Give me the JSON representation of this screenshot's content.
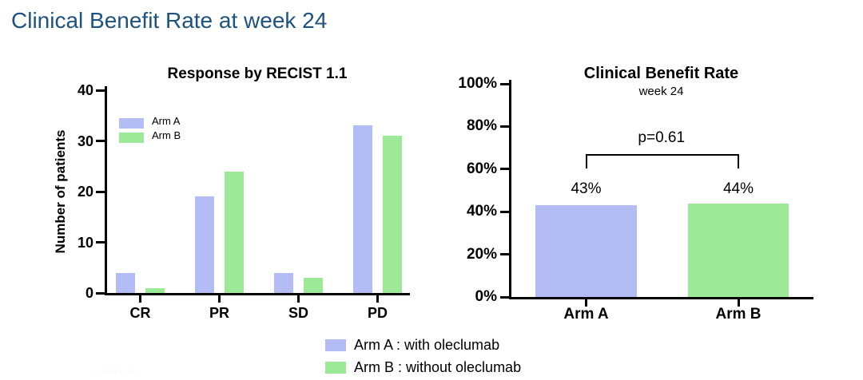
{
  "page": {
    "title": "Clinical Benefit Rate at week 24"
  },
  "colors": {
    "title_navy": "#1E527F",
    "arm_a": "#B4BCF5",
    "arm_b": "#9CE998",
    "axis": "#000000"
  },
  "chart_data": [
    {
      "type": "bar",
      "title": "Response by RECIST 1.1",
      "xlabel": "",
      "ylabel": "Number of patients",
      "categories": [
        "CR",
        "PR",
        "SD",
        "PD"
      ],
      "series": [
        {
          "name": "Arm A",
          "values": [
            4,
            19,
            4,
            33
          ]
        },
        {
          "name": "Arm B",
          "values": [
            1,
            24,
            3,
            31
          ]
        }
      ],
      "ylim": [
        0,
        40
      ],
      "yticks": [
        0,
        10,
        20,
        30,
        40
      ],
      "grid": false,
      "legend_position": "inside-top-left"
    },
    {
      "type": "bar",
      "title": "Clinical Benefit Rate",
      "subtitle": "week 24",
      "categories": [
        "Arm A",
        "Arm B"
      ],
      "values": [
        43,
        44
      ],
      "value_labels": [
        "43%",
        "44%"
      ],
      "ylim": [
        0,
        100
      ],
      "ytick_values": [
        0,
        20,
        40,
        60,
        80,
        100
      ],
      "ytick_labels": [
        "0%",
        "20%",
        "40%",
        "60%",
        "80%",
        "100%"
      ],
      "annotation": {
        "text": "p=0.61"
      },
      "grid": false,
      "legend_position": "none"
    }
  ],
  "bottom_legend": [
    {
      "swatch": "arm_a",
      "label": "Arm A : with oleclumab"
    },
    {
      "swatch": "arm_b",
      "label": "Arm B : without oleclumab"
    }
  ],
  "footer": {
    "watermark": "·· ·· ··· ·· · ··"
  }
}
